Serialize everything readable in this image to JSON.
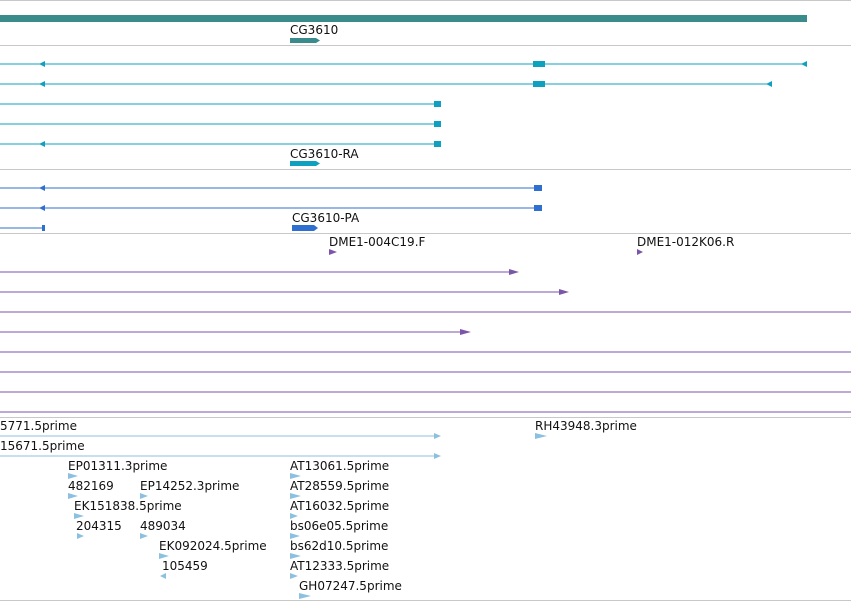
{
  "colors": {
    "gene": "#3a8b8b",
    "mrna": "#10a0bf",
    "protein": "#2f6fcf",
    "clone": "#7a55a8",
    "est": "#8cc0e0",
    "divider": "#c8c8c8"
  },
  "tracks": {
    "gene": {
      "label": "CG3610"
    },
    "mrna": {
      "label": "CG3610-RA"
    },
    "protein": {
      "label": "CG3610-PA"
    },
    "clones": {
      "labels": [
        "DME1-004C19.F",
        "DME1-012K06.R"
      ]
    },
    "ests": {
      "labels": [
        "5771.5prime",
        "15671.5prime",
        "RH43948.3prime",
        "EP01311.3prime",
        "AT13061.5prime",
        "482169",
        "EP14252.3prime",
        "AT28559.5prime",
        "EK151838.5prime",
        "AT16032.5prime",
        "204315",
        "489034",
        "bs06e05.5prime",
        "EK092024.5prime",
        "bs62d10.5prime",
        "105459",
        "AT12333.5prime",
        "GH07247.5prime"
      ]
    }
  }
}
